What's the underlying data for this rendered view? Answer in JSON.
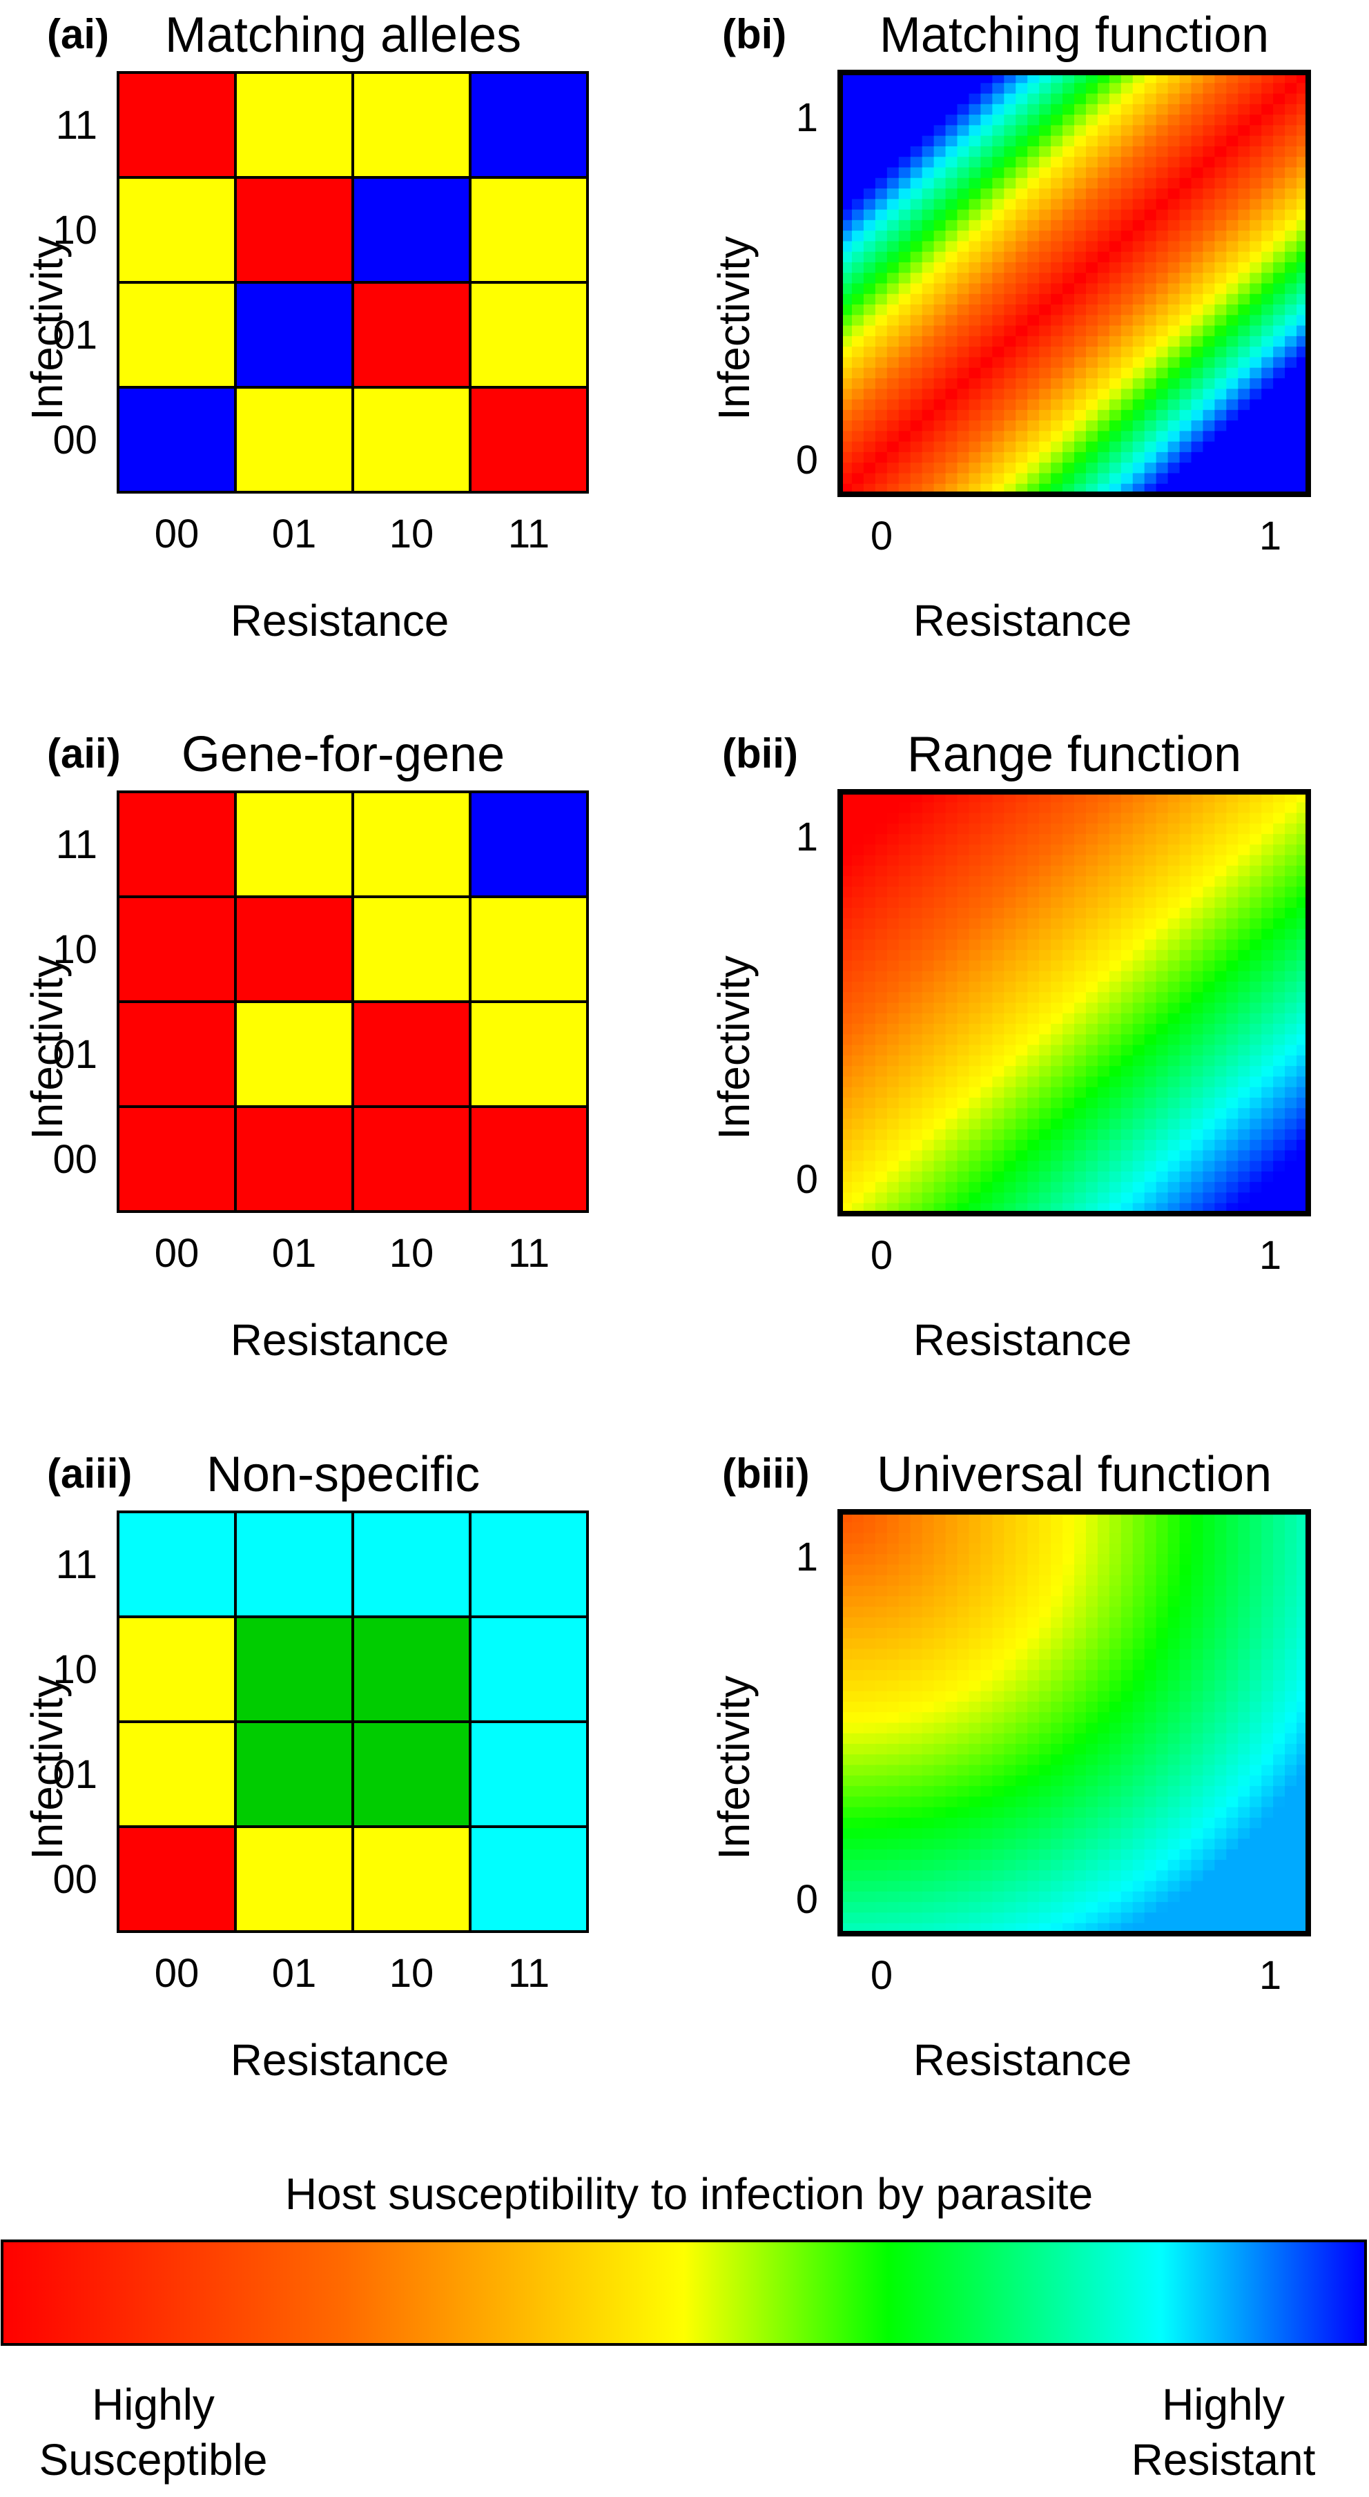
{
  "colors": {
    "red": "#ff0000",
    "yellow": "#ffff00",
    "green": "#00cc00",
    "cyan": "#00ffff",
    "blue": "#0000ff"
  },
  "chart_data": [
    {
      "type": "heatmap",
      "panel_label": "(ai)",
      "title": "Matching alleles",
      "xlabel": "Resistance",
      "ylabel": "Infectivity",
      "x_categories": [
        "00",
        "01",
        "10",
        "11"
      ],
      "y_categories": [
        "00",
        "01",
        "10",
        "11"
      ],
      "cells": [
        [
          "red",
          "yellow",
          "yellow",
          "blue"
        ],
        [
          "yellow",
          "red",
          "blue",
          "yellow"
        ],
        [
          "yellow",
          "blue",
          "red",
          "yellow"
        ],
        [
          "blue",
          "yellow",
          "yellow",
          "red"
        ]
      ]
    },
    {
      "type": "heatmap",
      "panel_label": "(bi)",
      "title": "Matching function",
      "xlabel": "Resistance",
      "ylabel": "Infectivity",
      "x_ticks": [
        "0",
        "1"
      ],
      "y_ticks": [
        "0",
        "1"
      ],
      "xlim": [
        0,
        1
      ],
      "ylim": [
        0,
        1
      ],
      "function": "matching"
    },
    {
      "type": "heatmap",
      "panel_label": "(aii)",
      "title": "Gene-for-gene",
      "xlabel": "Resistance",
      "ylabel": "Infectivity",
      "x_categories": [
        "00",
        "01",
        "10",
        "11"
      ],
      "y_categories": [
        "00",
        "01",
        "10",
        "11"
      ],
      "cells": [
        [
          "red",
          "yellow",
          "yellow",
          "blue"
        ],
        [
          "red",
          "red",
          "yellow",
          "yellow"
        ],
        [
          "red",
          "yellow",
          "red",
          "yellow"
        ],
        [
          "red",
          "red",
          "red",
          "red"
        ]
      ]
    },
    {
      "type": "heatmap",
      "panel_label": "(bii)",
      "title": "Range function",
      "xlabel": "Resistance",
      "ylabel": "Infectivity",
      "x_ticks": [
        "0",
        "1"
      ],
      "y_ticks": [
        "0",
        "1"
      ],
      "xlim": [
        0,
        1
      ],
      "ylim": [
        0,
        1
      ],
      "function": "range"
    },
    {
      "type": "heatmap",
      "panel_label": "(aiii)",
      "title": "Non-specific",
      "xlabel": "Resistance",
      "ylabel": "Infectivity",
      "x_categories": [
        "00",
        "01",
        "10",
        "11"
      ],
      "y_categories": [
        "00",
        "01",
        "10",
        "11"
      ],
      "cells": [
        [
          "cyan",
          "cyan",
          "cyan",
          "cyan"
        ],
        [
          "yellow",
          "green",
          "green",
          "cyan"
        ],
        [
          "yellow",
          "green",
          "green",
          "cyan"
        ],
        [
          "red",
          "yellow",
          "yellow",
          "cyan"
        ]
      ]
    },
    {
      "type": "heatmap",
      "panel_label": "(biii)",
      "title": "Universal function",
      "xlabel": "Resistance",
      "ylabel": "Infectivity",
      "x_ticks": [
        "0",
        "1"
      ],
      "y_ticks": [
        "0",
        "1"
      ],
      "xlim": [
        0,
        1
      ],
      "ylim": [
        0,
        1
      ],
      "function": "universal"
    }
  ],
  "colorbar": {
    "title": "Host susceptibility to infection by parasite",
    "left_label_line1": "Highly",
    "left_label_line2": "Susceptible",
    "right_label_line1": "Highly",
    "right_label_line2": "Resistant",
    "stops": [
      "#ff0000",
      "#ff6a00",
      "#ffff00",
      "#00ff00",
      "#00ffff",
      "#0000ff"
    ]
  }
}
